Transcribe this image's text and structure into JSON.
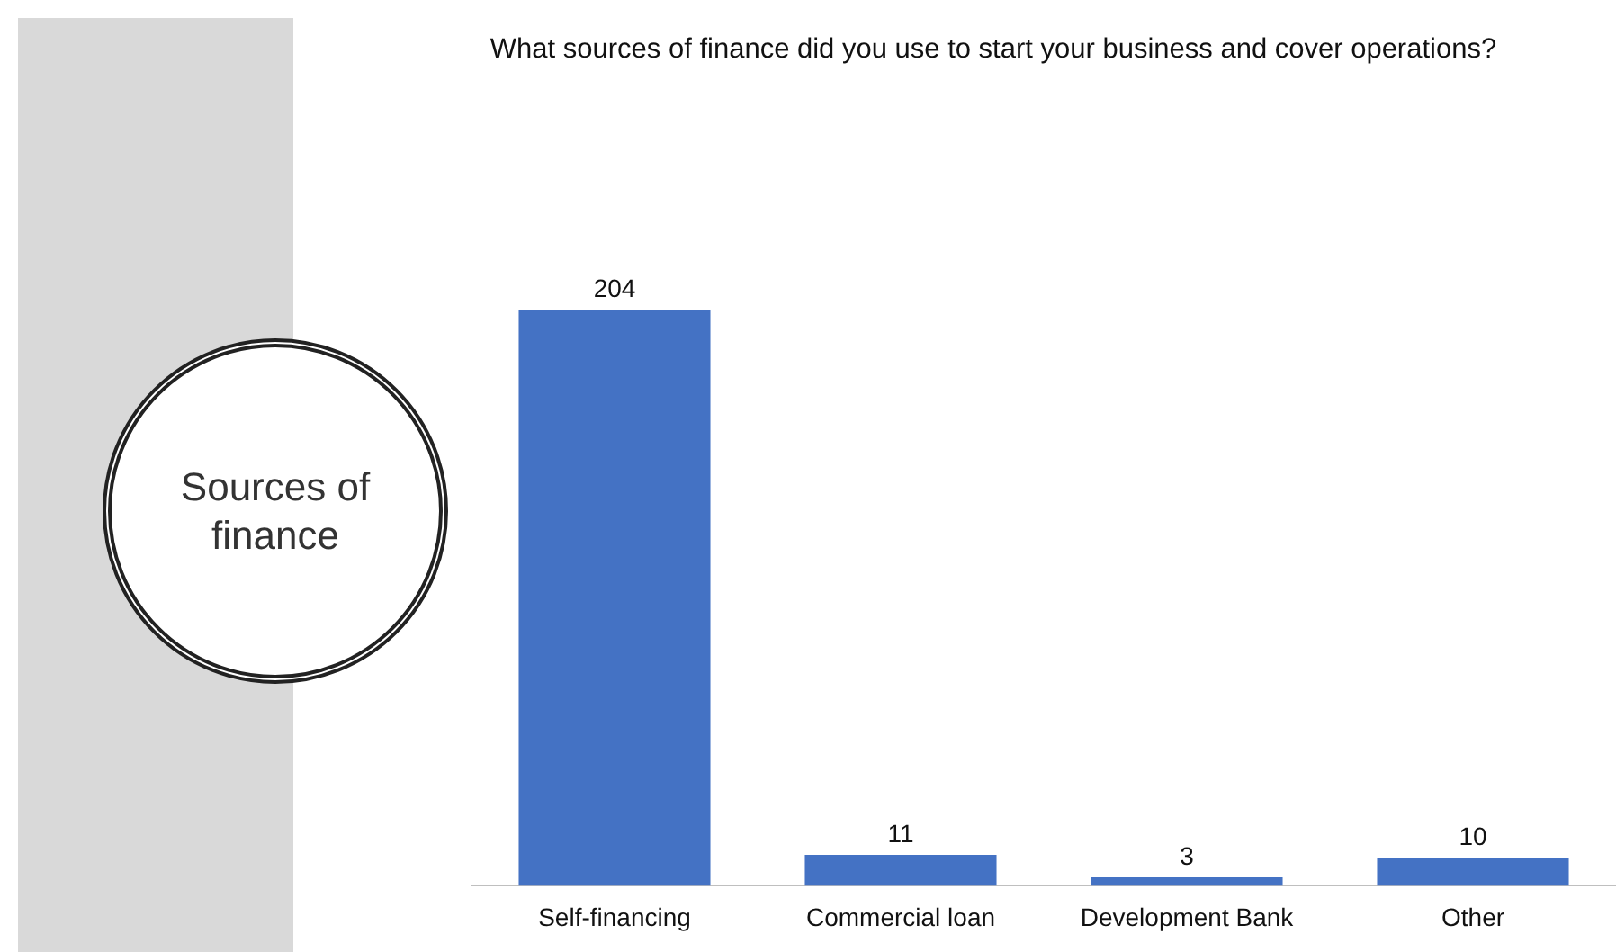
{
  "chart_data": {
    "type": "bar",
    "title": "What sources of finance did you use to start your business and cover operations?",
    "categories": [
      "Self-financing",
      "Commercial loan",
      "Development Bank",
      "Other"
    ],
    "values": [
      204,
      11,
      3,
      10
    ],
    "color": "#4472c4",
    "data_labels": true,
    "grid": false,
    "legend": false,
    "tick_labels": "x",
    "annotations": [
      "Sources of finance"
    ]
  }
}
